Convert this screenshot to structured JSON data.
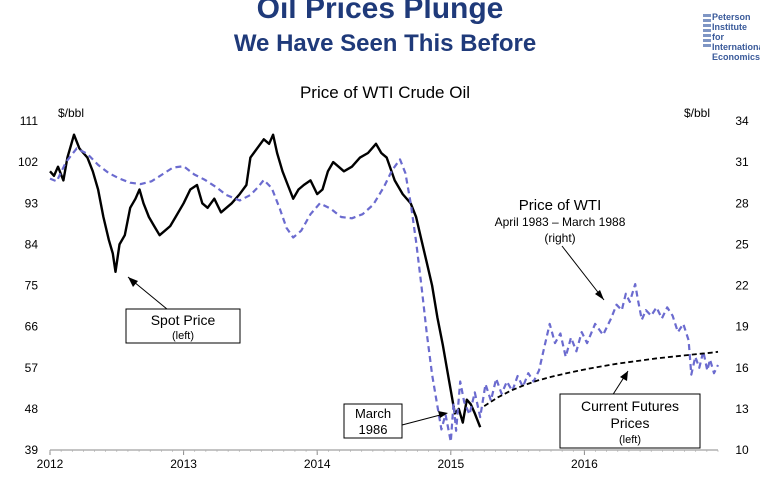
{
  "header": {
    "title": "Oil Prices Plunge",
    "subtitle": "We Have Seen This Before",
    "logo_lines": [
      "Peterson",
      "Institute for",
      "International",
      "Economics"
    ]
  },
  "chart_data": {
    "type": "line",
    "title": "Price of WTI Crude Oil",
    "left_unit": "$/bbl",
    "right_unit": "$/bbl",
    "x_ticks": [
      "2012",
      "2013",
      "2014",
      "2015",
      "2016"
    ],
    "x_range": [
      2012.0,
      2017.0
    ],
    "ylim_left": [
      39,
      111
    ],
    "yticks_left": [
      "111",
      "102",
      "93",
      "84",
      "75",
      "66",
      "57",
      "48",
      "39"
    ],
    "ylim_right": [
      10,
      34
    ],
    "yticks_right": [
      "34",
      "31",
      "28",
      "25",
      "22",
      "19",
      "16",
      "13",
      "10"
    ],
    "series": [
      {
        "name": "Spot Price",
        "axis": "left",
        "style": "solid",
        "color": "#000000",
        "points": [
          [
            2012.0,
            100
          ],
          [
            2012.03,
            99
          ],
          [
            2012.06,
            101
          ],
          [
            2012.1,
            98
          ],
          [
            2012.13,
            103
          ],
          [
            2012.16,
            106
          ],
          [
            2012.18,
            108
          ],
          [
            2012.22,
            105
          ],
          [
            2012.25,
            104
          ],
          [
            2012.28,
            103
          ],
          [
            2012.32,
            100
          ],
          [
            2012.36,
            96
          ],
          [
            2012.4,
            90
          ],
          [
            2012.44,
            85
          ],
          [
            2012.47,
            82
          ],
          [
            2012.49,
            78
          ],
          [
            2012.52,
            84
          ],
          [
            2012.56,
            86
          ],
          [
            2012.6,
            92
          ],
          [
            2012.64,
            94
          ],
          [
            2012.67,
            96
          ],
          [
            2012.7,
            93
          ],
          [
            2012.74,
            90
          ],
          [
            2012.78,
            88
          ],
          [
            2012.82,
            86
          ],
          [
            2012.86,
            87
          ],
          [
            2012.9,
            88
          ],
          [
            2012.94,
            90
          ],
          [
            2013.0,
            93
          ],
          [
            2013.05,
            96
          ],
          [
            2013.1,
            97
          ],
          [
            2013.14,
            93
          ],
          [
            2013.18,
            92
          ],
          [
            2013.23,
            94
          ],
          [
            2013.28,
            91
          ],
          [
            2013.32,
            92
          ],
          [
            2013.36,
            93
          ],
          [
            2013.42,
            95
          ],
          [
            2013.47,
            97
          ],
          [
            2013.5,
            103
          ],
          [
            2013.55,
            105
          ],
          [
            2013.6,
            107
          ],
          [
            2013.64,
            106
          ],
          [
            2013.67,
            108
          ],
          [
            2013.7,
            104
          ],
          [
            2013.74,
            100
          ],
          [
            2013.78,
            97
          ],
          [
            2013.82,
            94
          ],
          [
            2013.86,
            96
          ],
          [
            2013.9,
            97
          ],
          [
            2013.95,
            98
          ],
          [
            2014.0,
            95
          ],
          [
            2014.04,
            96
          ],
          [
            2014.08,
            100
          ],
          [
            2014.12,
            102
          ],
          [
            2014.16,
            101
          ],
          [
            2014.2,
            100
          ],
          [
            2014.26,
            101
          ],
          [
            2014.32,
            103
          ],
          [
            2014.38,
            104
          ],
          [
            2014.44,
            106
          ],
          [
            2014.48,
            104
          ],
          [
            2014.52,
            103
          ],
          [
            2014.58,
            98
          ],
          [
            2014.64,
            95
          ],
          [
            2014.7,
            93
          ],
          [
            2014.74,
            90
          ],
          [
            2014.78,
            85
          ],
          [
            2014.82,
            80
          ],
          [
            2014.86,
            75
          ],
          [
            2014.9,
            68
          ],
          [
            2014.94,
            62
          ],
          [
            2014.97,
            57
          ],
          [
            2015.0,
            52
          ],
          [
            2015.03,
            47
          ],
          [
            2015.06,
            48
          ],
          [
            2015.09,
            45
          ],
          [
            2015.12,
            50
          ],
          [
            2015.15,
            49
          ],
          [
            2015.18,
            47
          ],
          [
            2015.22,
            44
          ]
        ]
      },
      {
        "name": "Price of WTI April 1983 – March 1988 (right)",
        "axis": "right",
        "style": "dashed",
        "color": "#6b6bcf",
        "points": [
          [
            2012.0,
            29.8
          ],
          [
            2012.05,
            29.6
          ],
          [
            2012.12,
            31.0
          ],
          [
            2012.2,
            32.0
          ],
          [
            2012.28,
            31.6
          ],
          [
            2012.36,
            30.8
          ],
          [
            2012.44,
            30.2
          ],
          [
            2012.52,
            29.8
          ],
          [
            2012.6,
            29.5
          ],
          [
            2012.68,
            29.4
          ],
          [
            2012.76,
            29.6
          ],
          [
            2012.84,
            30.1
          ],
          [
            2012.92,
            30.6
          ],
          [
            2013.0,
            30.7
          ],
          [
            2013.08,
            30.1
          ],
          [
            2013.16,
            29.7
          ],
          [
            2013.24,
            29.2
          ],
          [
            2013.32,
            28.6
          ],
          [
            2013.42,
            28.2
          ],
          [
            2013.5,
            28.6
          ],
          [
            2013.56,
            29.2
          ],
          [
            2013.6,
            29.7
          ],
          [
            2013.66,
            29.1
          ],
          [
            2013.72,
            27.6
          ],
          [
            2013.77,
            26.2
          ],
          [
            2013.82,
            25.5
          ],
          [
            2013.88,
            26.0
          ],
          [
            2013.95,
            27.2
          ],
          [
            2014.02,
            28.0
          ],
          [
            2014.1,
            27.6
          ],
          [
            2014.18,
            27.0
          ],
          [
            2014.26,
            26.9
          ],
          [
            2014.34,
            27.2
          ],
          [
            2014.42,
            27.9
          ],
          [
            2014.5,
            29.2
          ],
          [
            2014.56,
            30.4
          ],
          [
            2014.62,
            31.2
          ],
          [
            2014.66,
            30.2
          ],
          [
            2014.7,
            28.0
          ],
          [
            2014.74,
            25.2
          ],
          [
            2014.78,
            22.0
          ],
          [
            2014.82,
            18.5
          ],
          [
            2014.86,
            15.5
          ],
          [
            2014.9,
            13.2
          ],
          [
            2014.93,
            11.5
          ],
          [
            2014.96,
            12.6
          ],
          [
            2015.0,
            10.6
          ],
          [
            2015.02,
            13.4
          ],
          [
            2015.04,
            11.4
          ],
          [
            2015.07,
            15.0
          ],
          [
            2015.1,
            13.5
          ],
          [
            2015.14,
            12.6
          ],
          [
            2015.18,
            14.2
          ],
          [
            2015.22,
            12.4
          ],
          [
            2015.26,
            14.8
          ],
          [
            2015.3,
            13.6
          ],
          [
            2015.34,
            15.2
          ],
          [
            2015.38,
            14.1
          ],
          [
            2015.42,
            15.0
          ],
          [
            2015.46,
            14.3
          ],
          [
            2015.5,
            15.4
          ],
          [
            2015.54,
            14.6
          ],
          [
            2015.58,
            15.6
          ],
          [
            2015.62,
            15.0
          ],
          [
            2015.66,
            15.8
          ],
          [
            2015.7,
            17.5
          ],
          [
            2015.74,
            19.2
          ],
          [
            2015.78,
            17.8
          ],
          [
            2015.82,
            18.5
          ],
          [
            2015.86,
            16.8
          ],
          [
            2015.9,
            18.2
          ],
          [
            2015.94,
            17.2
          ],
          [
            2015.98,
            18.6
          ],
          [
            2016.02,
            17.8
          ],
          [
            2016.08,
            19.2
          ],
          [
            2016.14,
            18.4
          ],
          [
            2016.2,
            19.6
          ],
          [
            2016.24,
            20.6
          ],
          [
            2016.28,
            20.2
          ],
          [
            2016.31,
            21.4
          ],
          [
            2016.34,
            20.8
          ],
          [
            2016.38,
            22.1
          ],
          [
            2016.4,
            21.0
          ],
          [
            2016.43,
            19.5
          ],
          [
            2016.46,
            20.2
          ],
          [
            2016.5,
            19.8
          ],
          [
            2016.54,
            20.4
          ],
          [
            2016.58,
            19.6
          ],
          [
            2016.62,
            20.4
          ],
          [
            2016.66,
            19.8
          ],
          [
            2016.7,
            18.6
          ],
          [
            2016.74,
            19.2
          ],
          [
            2016.78,
            18.0
          ],
          [
            2016.8,
            15.5
          ],
          [
            2016.83,
            16.8
          ],
          [
            2016.86,
            16.0
          ],
          [
            2016.89,
            17.2
          ],
          [
            2016.92,
            15.8
          ],
          [
            2016.94,
            16.6
          ],
          [
            2016.97,
            15.6
          ],
          [
            2017.0,
            16.2
          ]
        ]
      },
      {
        "name": "Current Futures Prices (left)",
        "axis": "left",
        "style": "dashed",
        "color": "#000000",
        "points": [
          [
            2015.25,
            48.6
          ],
          [
            2015.35,
            50.5
          ],
          [
            2015.45,
            52.0
          ],
          [
            2015.55,
            53.2
          ],
          [
            2015.65,
            54.2
          ],
          [
            2015.75,
            55.0
          ],
          [
            2015.85,
            55.7
          ],
          [
            2015.95,
            56.3
          ],
          [
            2016.05,
            56.9
          ],
          [
            2016.15,
            57.4
          ],
          [
            2016.25,
            57.9
          ],
          [
            2016.35,
            58.3
          ],
          [
            2016.45,
            58.7
          ],
          [
            2016.55,
            59.1
          ],
          [
            2016.65,
            59.4
          ],
          [
            2016.75,
            59.7
          ],
          [
            2016.85,
            60.0
          ],
          [
            2016.95,
            60.3
          ],
          [
            2017.0,
            60.5
          ]
        ]
      }
    ],
    "annotations": {
      "spot": {
        "title": "Spot Price",
        "note": "(left)"
      },
      "wti": {
        "title": "Price of WTI",
        "dates": "April 1983 – March 1988",
        "note": "(right)"
      },
      "march": {
        "line1": "March",
        "line2": "1986"
      },
      "futures": {
        "line1": "Current Futures",
        "line2": "Prices",
        "note": "(left)"
      }
    }
  }
}
